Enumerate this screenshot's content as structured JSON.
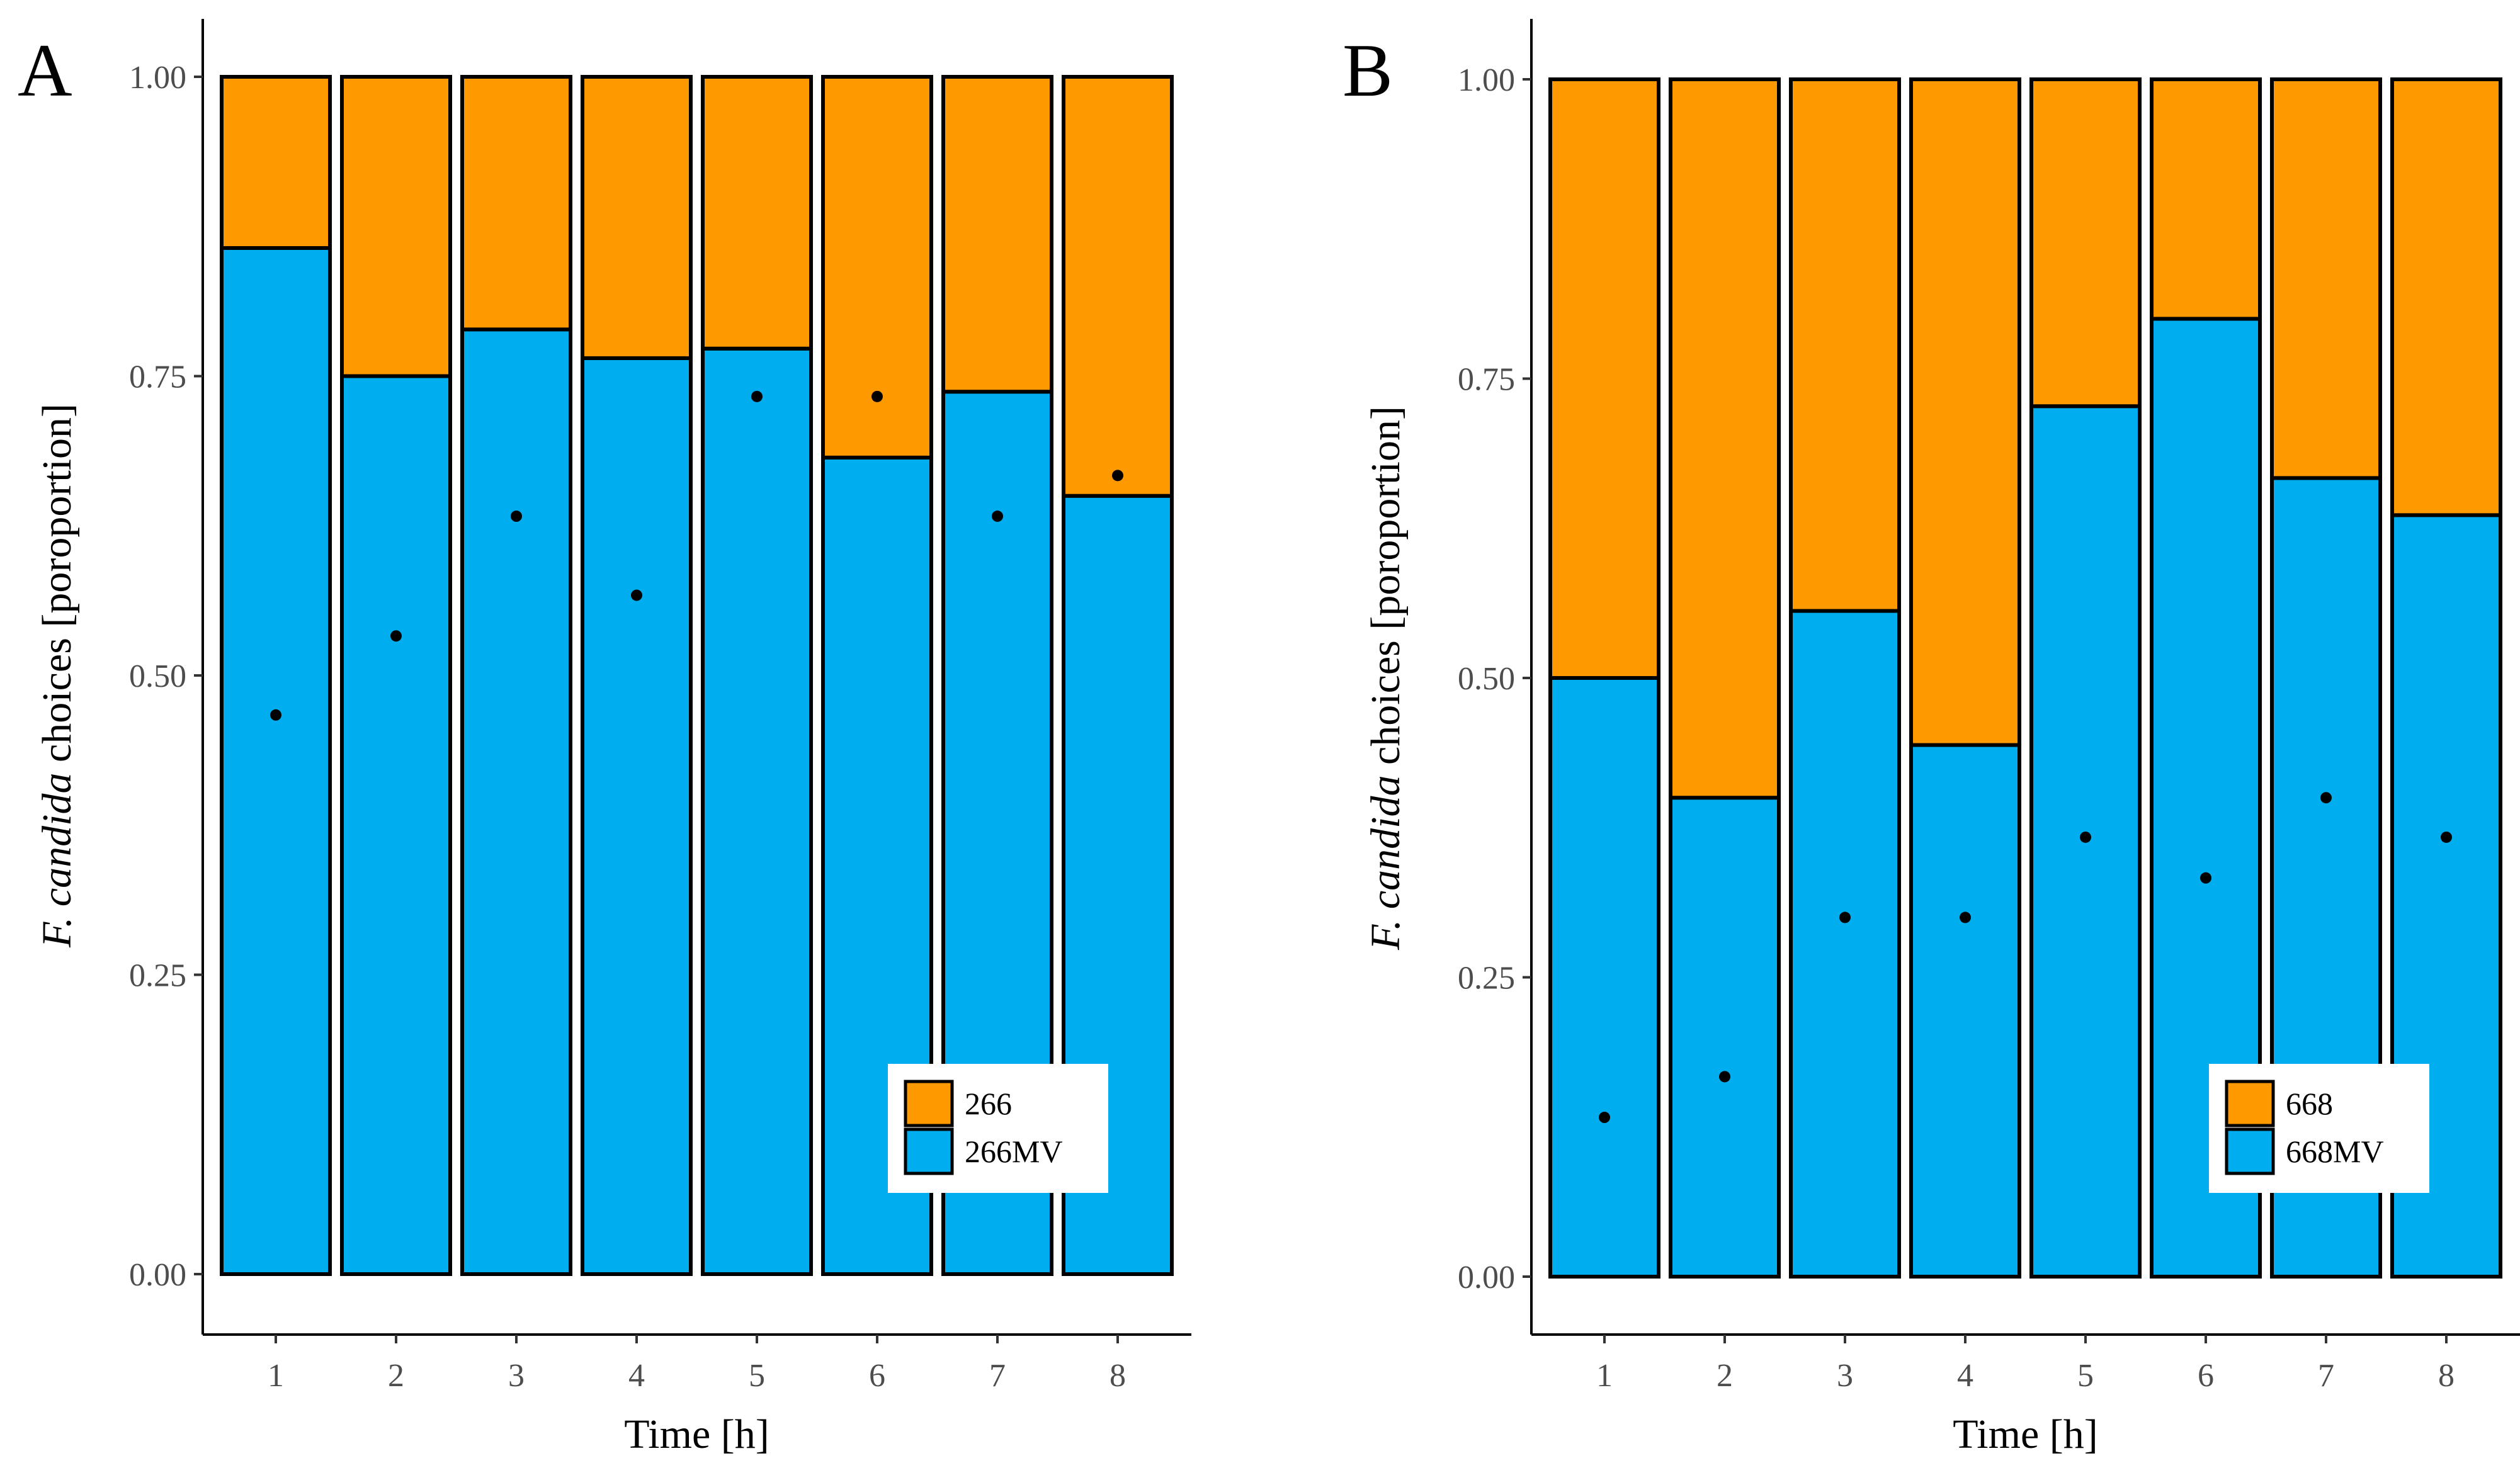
{
  "chart_data": [
    {
      "type": "bar",
      "stacked": true,
      "panel_label": "A",
      "title": "",
      "xlabel": "Time [h]",
      "ylabel_italic": "F. candida",
      "ylabel_rest": " choices [poroportion]",
      "ylim": [
        0,
        1
      ],
      "yticks": [
        "0.00",
        "0.25",
        "0.50",
        "0.75",
        "1.00"
      ],
      "categories": [
        "1",
        "2",
        "3",
        "4",
        "5",
        "6",
        "7",
        "8"
      ],
      "series": [
        {
          "name": "266MV",
          "color": "#00AEEF",
          "values": [
            0.857,
            0.75,
            0.789,
            0.765,
            0.773,
            0.682,
            0.737,
            0.65
          ]
        },
        {
          "name": "266",
          "color": "#FF9900",
          "values": [
            0.143,
            0.25,
            0.211,
            0.235,
            0.227,
            0.318,
            0.263,
            0.35
          ]
        }
      ],
      "points": [
        0.467,
        0.533,
        0.633,
        0.567,
        0.733,
        0.733,
        0.633,
        0.667
      ],
      "legend": {
        "position": "bottom-right",
        "entries": [
          "266",
          "266MV"
        ]
      }
    },
    {
      "type": "bar",
      "stacked": true,
      "panel_label": "B",
      "title": "",
      "xlabel": "Time [h]",
      "ylabel_italic": "F. candida",
      "ylabel_rest": " choices [poroportion]",
      "ylim": [
        0,
        1
      ],
      "yticks": [
        "0.00",
        "0.25",
        "0.50",
        "0.75",
        "1.00"
      ],
      "categories": [
        "1",
        "2",
        "3",
        "4",
        "5",
        "6",
        "7",
        "8"
      ],
      "series": [
        {
          "name": "668MV",
          "color": "#00AEEF",
          "values": [
            0.5,
            0.4,
            0.556,
            0.444,
            0.727,
            0.8,
            0.667,
            0.636
          ]
        },
        {
          "name": "668",
          "color": "#FF9900",
          "values": [
            0.5,
            0.6,
            0.444,
            0.556,
            0.273,
            0.2,
            0.333,
            0.364
          ]
        }
      ],
      "points": [
        0.133,
        0.167,
        0.3,
        0.3,
        0.367,
        0.333,
        0.4,
        0.367
      ],
      "legend": {
        "position": "bottom-right",
        "entries": [
          "668",
          "668MV"
        ]
      }
    }
  ]
}
